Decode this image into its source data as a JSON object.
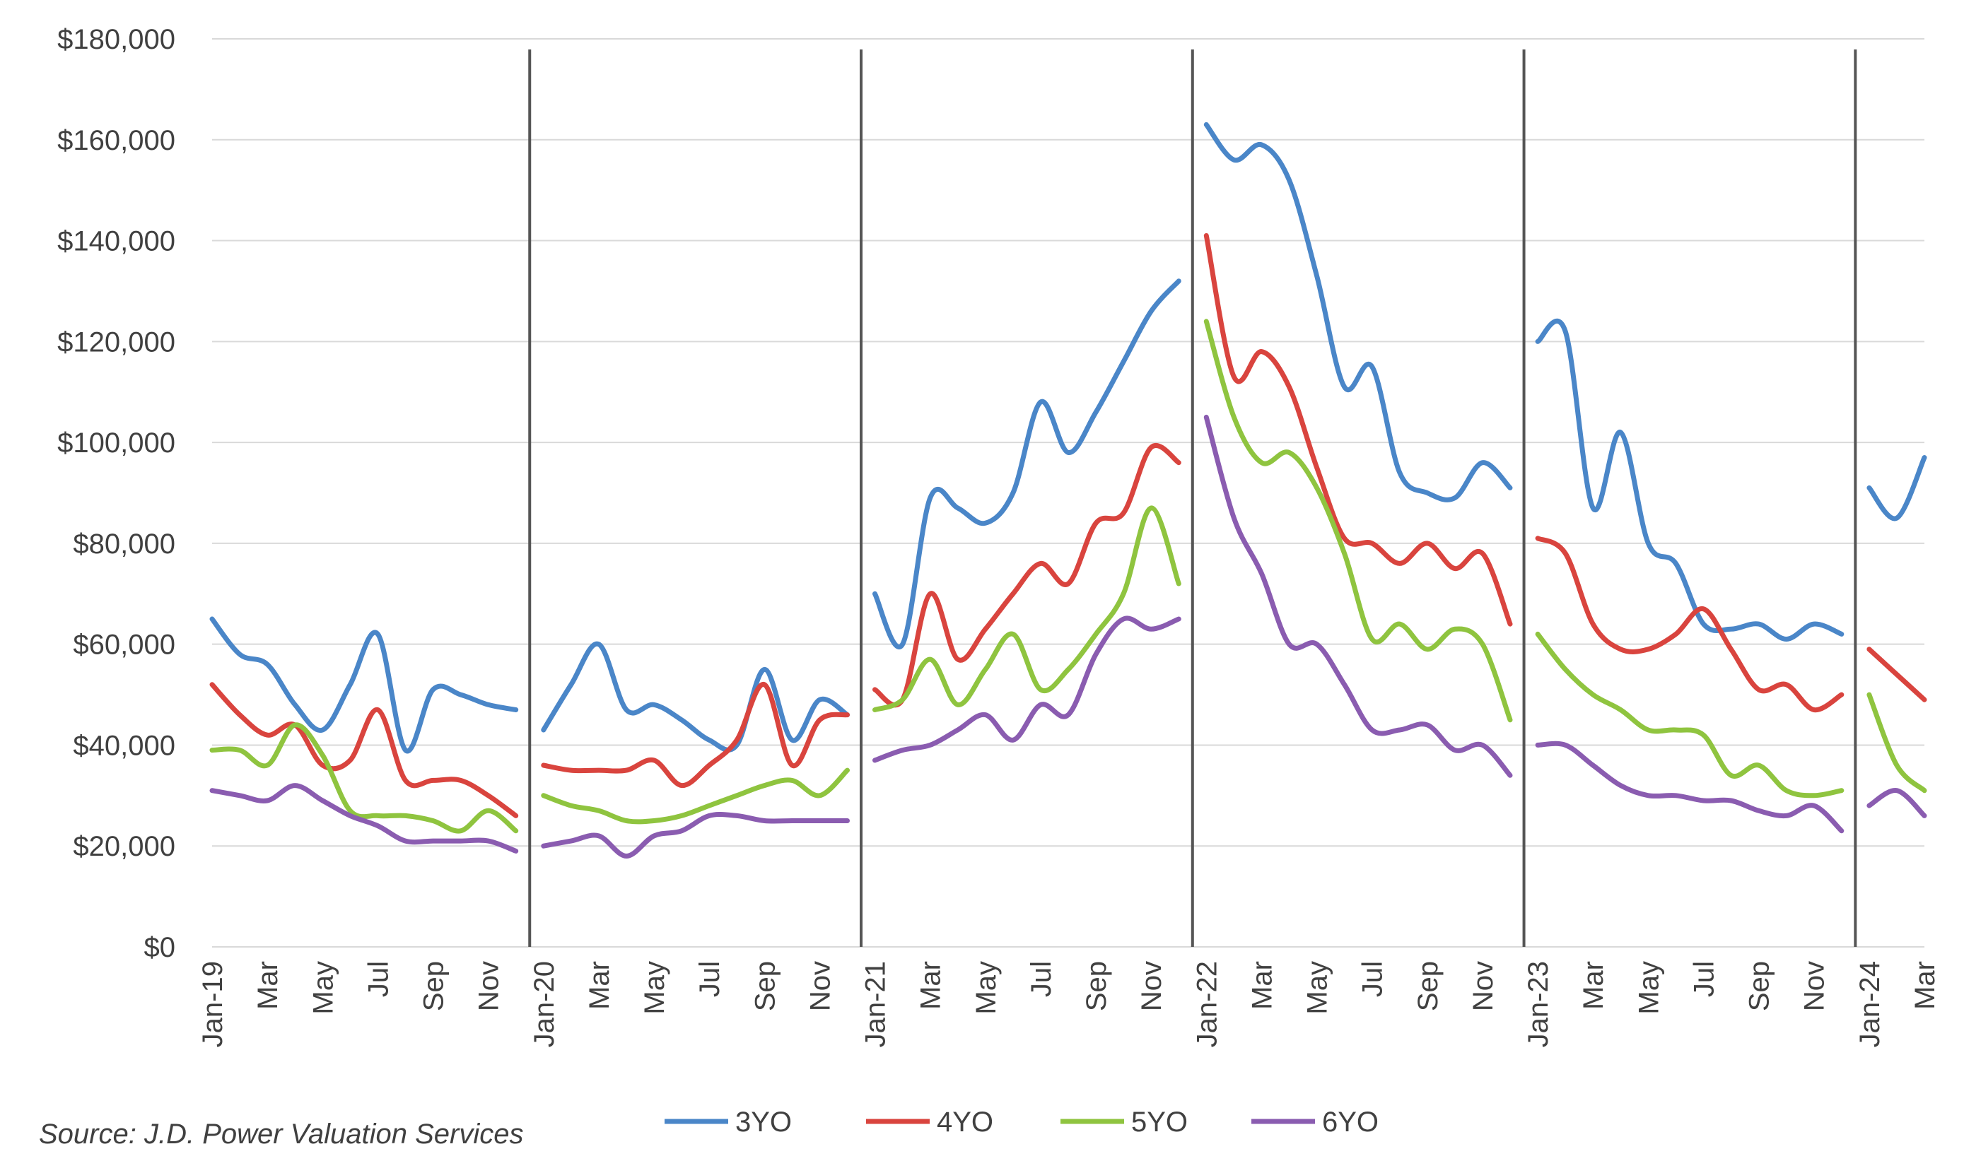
{
  "source": "Source: J.D. Power Valuation Services",
  "colors": {
    "3YO": "#4a86c8",
    "4YO": "#d9443e",
    "5YO": "#8fc43f",
    "6YO": "#8a5cb0",
    "grid": "#d9d9d9",
    "divider": "#555555"
  },
  "chart_data": {
    "type": "line",
    "title": "",
    "xlabel": "",
    "ylabel": "",
    "ylim": [
      0,
      180000
    ],
    "yticks": [
      "$0",
      "$20,000",
      "$40,000",
      "$60,000",
      "$80,000",
      "$100,000",
      "$120,000",
      "$140,000",
      "$160,000",
      "$180,000"
    ],
    "grid": "horizontal",
    "legend": "bottom",
    "year_dividers": [
      "Jan-20",
      "Jan-21",
      "Jan-22",
      "Jan-23",
      "Jan-24"
    ],
    "x": [
      "Jan-19",
      "Feb-19",
      "Mar-19",
      "Apr-19",
      "May-19",
      "Jun-19",
      "Jul-19",
      "Aug-19",
      "Sep-19",
      "Oct-19",
      "Nov-19",
      "Dec-19",
      "Jan-20",
      "Feb-20",
      "Mar-20",
      "Apr-20",
      "May-20",
      "Jun-20",
      "Jul-20",
      "Aug-20",
      "Sep-20",
      "Oct-20",
      "Nov-20",
      "Dec-20",
      "Jan-21",
      "Feb-21",
      "Mar-21",
      "Apr-21",
      "May-21",
      "Jun-21",
      "Jul-21",
      "Aug-21",
      "Sep-21",
      "Oct-21",
      "Nov-21",
      "Dec-21",
      "Jan-22",
      "Feb-22",
      "Mar-22",
      "Apr-22",
      "May-22",
      "Jun-22",
      "Jul-22",
      "Aug-22",
      "Sep-22",
      "Oct-22",
      "Nov-22",
      "Dec-22",
      "Jan-23",
      "Feb-23",
      "Mar-23",
      "Apr-23",
      "May-23",
      "Jun-23",
      "Jul-23",
      "Aug-23",
      "Sep-23",
      "Oct-23",
      "Nov-23",
      "Dec-23",
      "Jan-24",
      "Feb-24",
      "Mar-24"
    ],
    "xtick_labels": [
      "Jan-19",
      "Mar",
      "May",
      "Jul",
      "Sep",
      "Nov",
      "Jan-20",
      "Mar",
      "May",
      "Jul",
      "Sep",
      "Nov",
      "Jan-21",
      "Mar",
      "May",
      "Jul",
      "Sep",
      "Nov",
      "Jan-22",
      "Mar",
      "May",
      "Jul",
      "Sep",
      "Nov",
      "Jan-23",
      "Mar",
      "May",
      "Jul",
      "Sep",
      "Nov",
      "Jan-24",
      "Mar"
    ],
    "series": [
      {
        "name": "3YO",
        "color": "#4a86c8",
        "segments": [
          [
            65000,
            58000,
            56000,
            48000,
            43000,
            52000,
            62000,
            39000,
            51000,
            50000,
            48000,
            47000
          ],
          [
            43000,
            52000,
            60000,
            47000,
            48000,
            45000,
            41000,
            40000,
            55000,
            41000,
            49000,
            46000
          ],
          [
            70000,
            60000,
            89000,
            87000,
            84000,
            90000,
            108000,
            98000,
            106000,
            116000,
            126000,
            132000
          ],
          [
            163000,
            156000,
            159000,
            152000,
            133000,
            111000,
            115000,
            94000,
            90000,
            89000,
            96000,
            91000
          ],
          [
            120000,
            122000,
            87000,
            102000,
            80000,
            76000,
            64000,
            63000,
            64000,
            61000,
            64000,
            62000
          ],
          [
            91000,
            85000,
            97000
          ]
        ]
      },
      {
        "name": "4YO",
        "color": "#d9443e",
        "segments": [
          [
            52000,
            46000,
            42000,
            44000,
            36000,
            37000,
            47000,
            33000,
            33000,
            33000,
            30000,
            26000
          ],
          [
            36000,
            35000,
            35000,
            35000,
            37000,
            32000,
            36000,
            41000,
            52000,
            36000,
            45000,
            46000
          ],
          [
            51000,
            49000,
            70000,
            57000,
            63000,
            70000,
            76000,
            72000,
            84000,
            86000,
            99000,
            96000
          ],
          [
            141000,
            113000,
            118000,
            111000,
            95000,
            81000,
            80000,
            76000,
            80000,
            75000,
            78000,
            64000
          ],
          [
            81000,
            78000,
            64000,
            59000,
            59000,
            62000,
            67000,
            59000,
            51000,
            52000,
            47000,
            50000
          ],
          [
            59000,
            54000,
            49000
          ]
        ]
      },
      {
        "name": "5YO",
        "color": "#8fc43f",
        "segments": [
          [
            39000,
            39000,
            36000,
            44000,
            38000,
            27000,
            26000,
            26000,
            25000,
            23000,
            27000,
            23000
          ],
          [
            30000,
            28000,
            27000,
            25000,
            25000,
            26000,
            28000,
            30000,
            32000,
            33000,
            30000,
            35000
          ],
          [
            47000,
            49000,
            57000,
            48000,
            55000,
            62000,
            51000,
            55000,
            62000,
            70000,
            87000,
            72000
          ],
          [
            124000,
            105000,
            96000,
            98000,
            91000,
            78000,
            61000,
            64000,
            59000,
            63000,
            60000,
            45000
          ],
          [
            62000,
            55000,
            50000,
            47000,
            43000,
            43000,
            42000,
            34000,
            36000,
            31000,
            30000,
            31000
          ],
          [
            50000,
            36000,
            31000
          ]
        ]
      },
      {
        "name": "6YO",
        "color": "#8a5cb0",
        "segments": [
          [
            31000,
            30000,
            29000,
            32000,
            29000,
            26000,
            24000,
            21000,
            21000,
            21000,
            21000,
            19000
          ],
          [
            20000,
            21000,
            22000,
            18000,
            22000,
            23000,
            26000,
            26000,
            25000,
            25000,
            25000,
            25000
          ],
          [
            37000,
            39000,
            40000,
            43000,
            46000,
            41000,
            48000,
            46000,
            58000,
            65000,
            63000,
            65000
          ],
          [
            105000,
            85000,
            74000,
            60000,
            60000,
            52000,
            43000,
            43000,
            44000,
            39000,
            40000,
            34000
          ],
          [
            40000,
            40000,
            36000,
            32000,
            30000,
            30000,
            29000,
            29000,
            27000,
            26000,
            28000,
            23000
          ],
          [
            28000,
            31000,
            26000
          ]
        ]
      }
    ]
  }
}
